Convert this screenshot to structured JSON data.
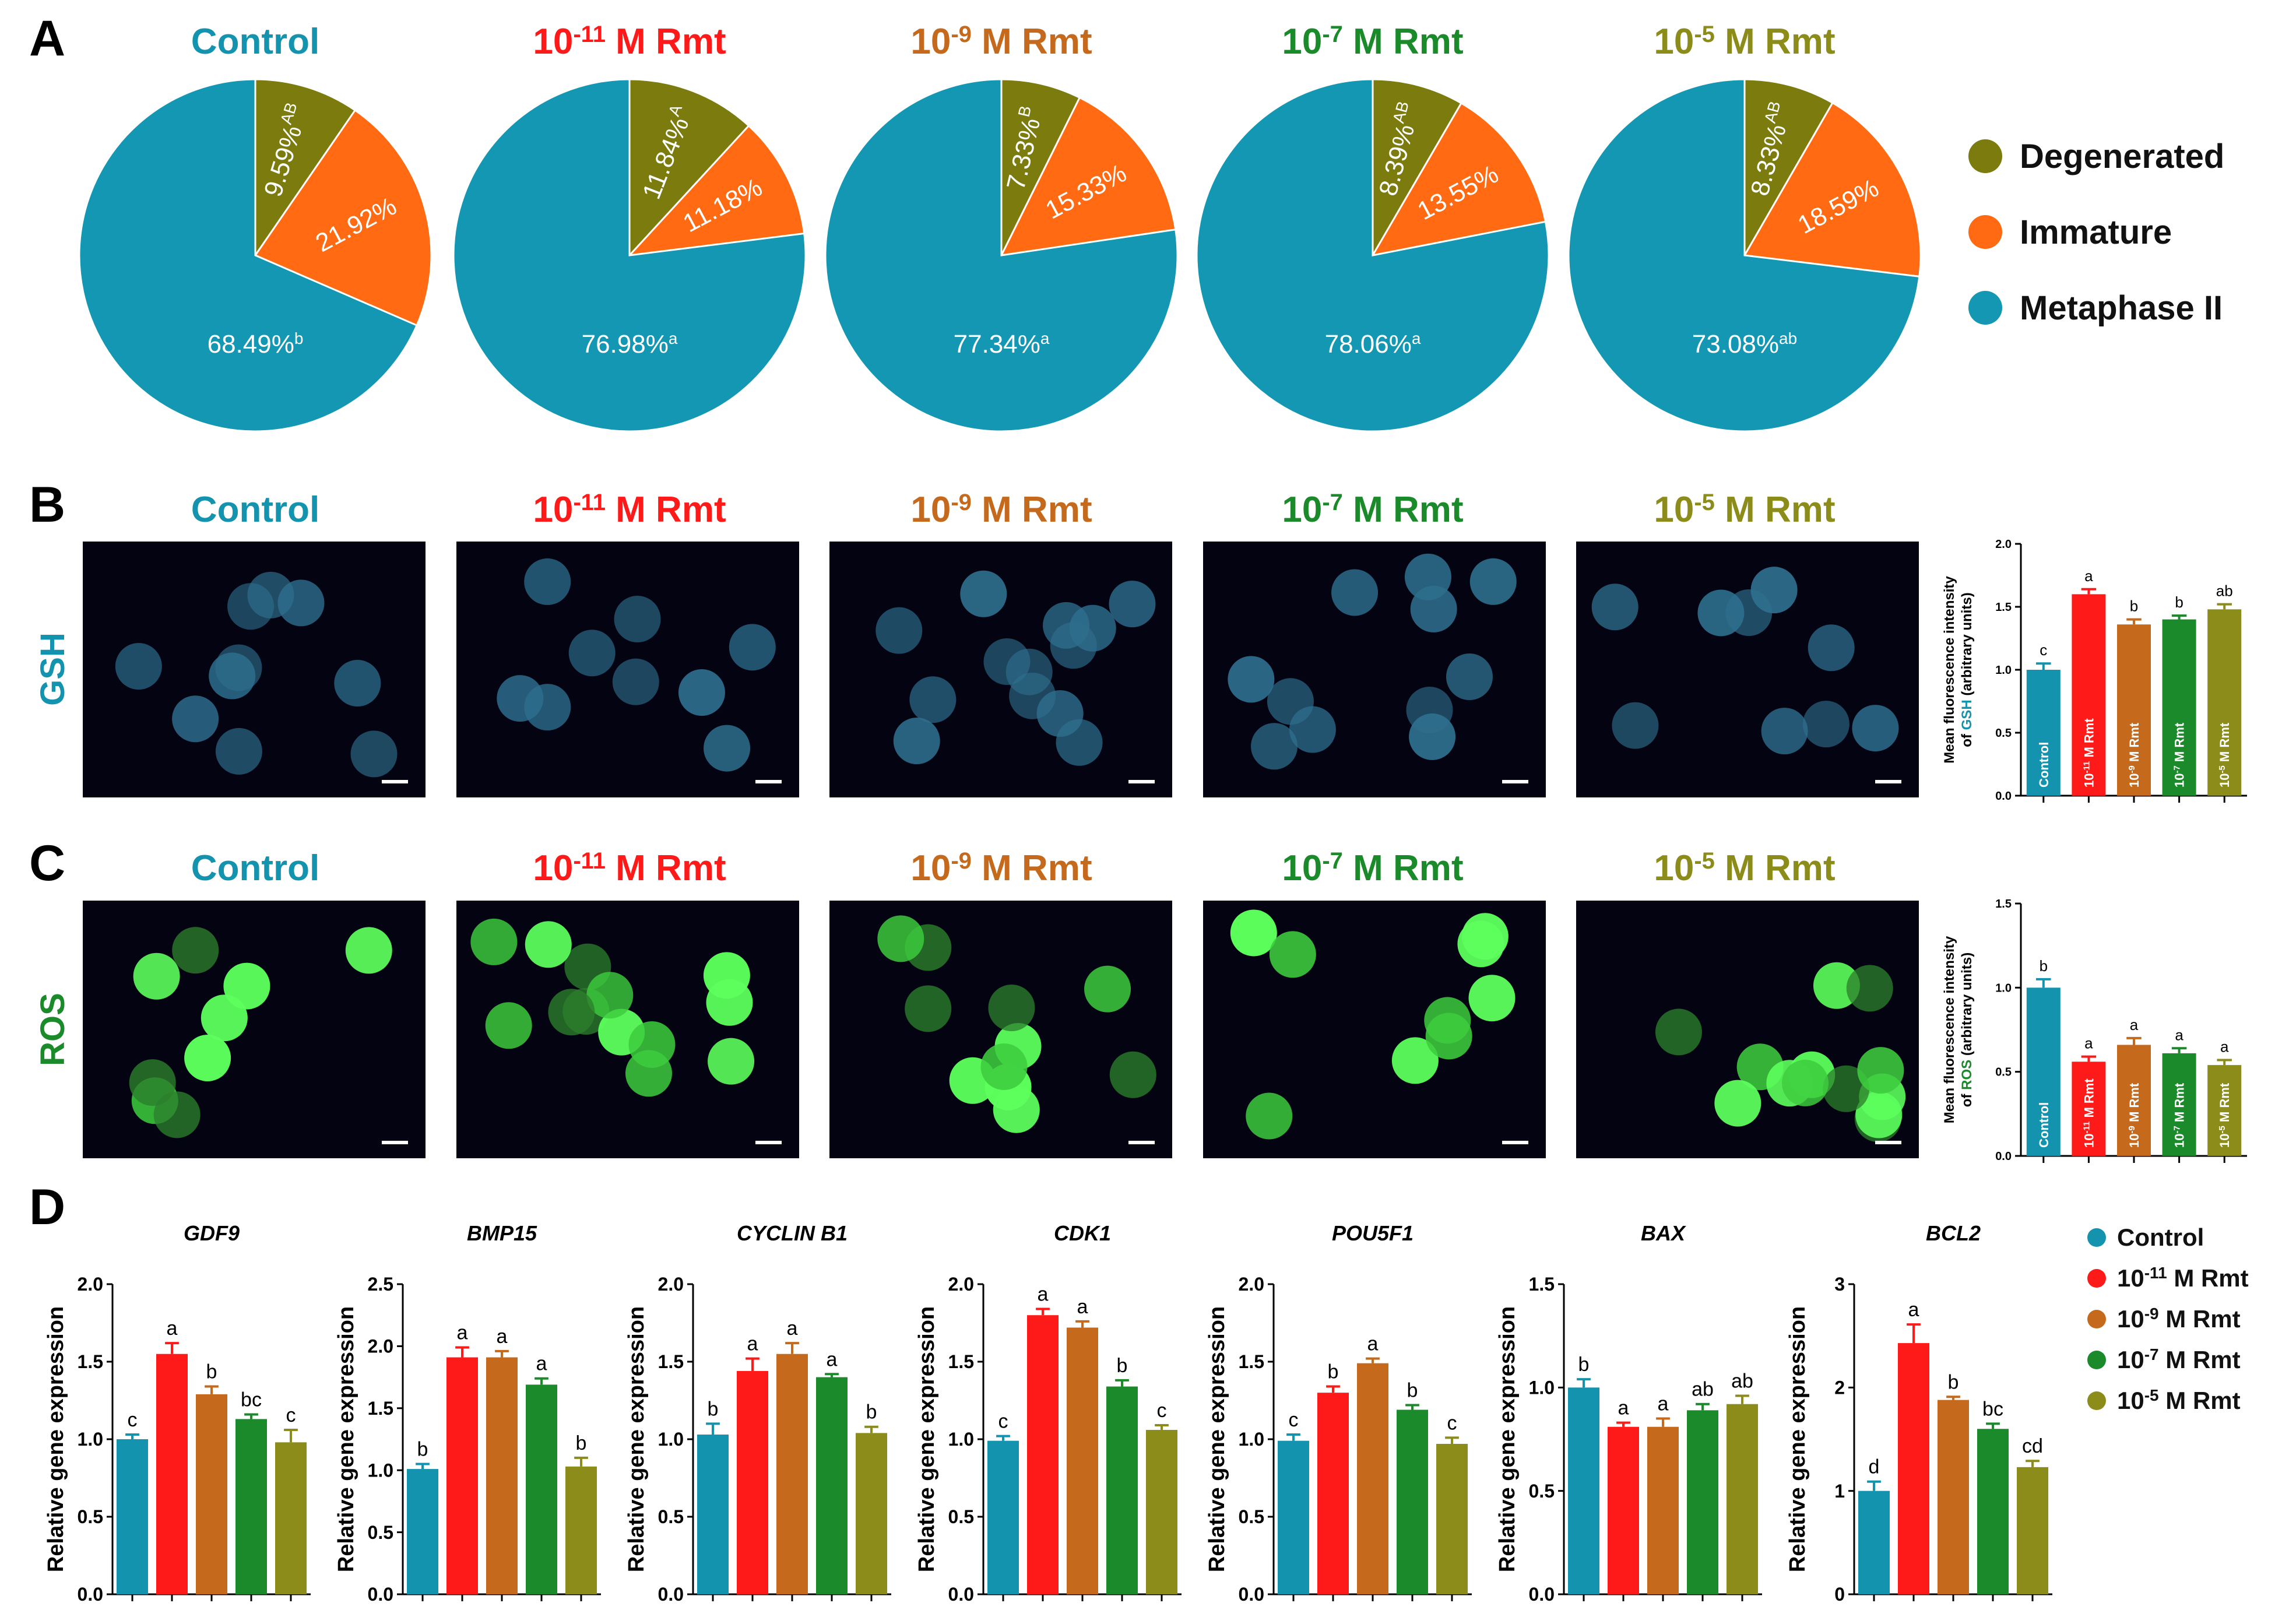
{
  "colors": {
    "control": "#1493AE",
    "rmt11": "#FF1A1A",
    "rmt9": "#C56A1C",
    "rmt7": "#1B8A2A",
    "rmt5": "#8C8C1A",
    "degenerated": "#7B7B0E",
    "immature": "#FF6A13",
    "metaphase": "#1497B3",
    "gsh_fluor": "#2E6F8E",
    "ros_fluor": "#4CE04C"
  },
  "panel_labels": [
    "A",
    "B",
    "C",
    "D"
  ],
  "group_titles": [
    {
      "base": "Control",
      "exp": "",
      "rest": ""
    },
    {
      "base": "10",
      "exp": "-11",
      "rest": " M Rmt"
    },
    {
      "base": "10",
      "exp": "-9",
      "rest": " M Rmt"
    },
    {
      "base": "10",
      "exp": "-7",
      "rest": " M Rmt"
    },
    {
      "base": "10",
      "exp": "-5",
      "rest": " M Rmt"
    }
  ],
  "pie_legend": [
    "Degenerated",
    "Immature",
    "Metaphase II"
  ],
  "row_labels": {
    "gsh": "GSH",
    "ros": "ROS"
  },
  "bar_group_labels": [
    {
      "base": "Control",
      "exp": "",
      "rest": ""
    },
    {
      "base": "10",
      "exp": "-11",
      "rest": " M Rmt"
    },
    {
      "base": "10",
      "exp": "-9",
      "rest": " M Rmt"
    },
    {
      "base": "10",
      "exp": "-7",
      "rest": " M Rmt"
    },
    {
      "base": "10",
      "exp": "-5",
      "rest": " M Rmt"
    }
  ],
  "chart_data": [
    {
      "type": "pie",
      "panel": "A",
      "categories": [
        "Degenerated",
        "Immature",
        "Metaphase II"
      ],
      "pies": [
        {
          "group": "Control",
          "values": [
            9.59,
            21.92,
            68.49
          ],
          "labels": [
            "9.59%",
            "21.92%",
            "68.49%"
          ],
          "sups": [
            "AB",
            "",
            "b"
          ]
        },
        {
          "group": "10-11 M Rmt",
          "values": [
            11.84,
            11.18,
            76.98
          ],
          "labels": [
            "11.84%",
            "11.18%",
            "76.98%"
          ],
          "sups": [
            "A",
            "",
            "a"
          ]
        },
        {
          "group": "10-9 M Rmt",
          "values": [
            7.33,
            15.33,
            77.34
          ],
          "labels": [
            "7.33%",
            "15.33%",
            "77.34%"
          ],
          "sups": [
            "B",
            "",
            "a"
          ]
        },
        {
          "group": "10-7 M Rmt",
          "values": [
            8.39,
            13.55,
            78.06
          ],
          "labels": [
            "8.39%",
            "13.55%",
            "78.06%"
          ],
          "sups": [
            "AB",
            "",
            "a"
          ]
        },
        {
          "group": "10-5 M Rmt",
          "values": [
            8.33,
            18.59,
            73.08
          ],
          "labels": [
            "8.33%",
            "18.59%",
            "73.08%"
          ],
          "sups": [
            "AB",
            "",
            "ab"
          ]
        }
      ]
    },
    {
      "type": "bar",
      "panel": "B",
      "ylabel_line1": "Mean fluorescence intensity",
      "ylabel_line2_pre": "of ",
      "ylabel_line2_key": "GSH",
      "ylabel_line2_post": " (arbitrary units)",
      "ylim": [
        0,
        2.0
      ],
      "yticks": [
        "0.0",
        "0.5",
        "1.0",
        "1.5",
        "2.0"
      ],
      "categories": [
        "Control",
        "10-11 M Rmt",
        "10-9 M Rmt",
        "10-7 M Rmt",
        "10-5 M Rmt"
      ],
      "values": [
        1.0,
        1.6,
        1.36,
        1.4,
        1.48
      ],
      "errors": [
        0.05,
        0.04,
        0.04,
        0.03,
        0.04
      ],
      "letters": [
        "c",
        "a",
        "b",
        "b",
        "ab"
      ]
    },
    {
      "type": "bar",
      "panel": "C",
      "ylabel_line1": "Mean fluorescence intensity",
      "ylabel_line2_pre": "of ",
      "ylabel_line2_key": "ROS",
      "ylabel_line2_post": " (arbitrary units)",
      "ylim": [
        0,
        1.5
      ],
      "yticks": [
        "0.0",
        "0.5",
        "1.0",
        "1.5"
      ],
      "categories": [
        "Control",
        "10-11 M Rmt",
        "10-9 M Rmt",
        "10-7 M Rmt",
        "10-5 M Rmt"
      ],
      "values": [
        1.0,
        0.56,
        0.66,
        0.61,
        0.54
      ],
      "errors": [
        0.05,
        0.03,
        0.04,
        0.03,
        0.03
      ],
      "letters": [
        "b",
        "a",
        "a",
        "a",
        "a"
      ]
    },
    {
      "type": "bar",
      "panel": "D",
      "ylabel": "Relative gene expression",
      "legend": [
        "Control",
        "10-11 M Rmt",
        "10-9 M Rmt",
        "10-7 M Rmt",
        "10-5 M Rmt"
      ],
      "genes": [
        {
          "title": "GDF9",
          "ylim": [
            0,
            2.0
          ],
          "yticks": [
            "0.0",
            "0.5",
            "1.0",
            "1.5",
            "2.0"
          ],
          "values": [
            1.0,
            1.55,
            1.29,
            1.13,
            0.98
          ],
          "errors": [
            0.03,
            0.07,
            0.05,
            0.03,
            0.08
          ],
          "letters": [
            "c",
            "a",
            "b",
            "bc",
            "c"
          ]
        },
        {
          "title": "BMP15",
          "ylim": [
            0,
            2.5
          ],
          "yticks": [
            "0.0",
            "0.5",
            "1.0",
            "1.5",
            "2.0",
            "2.5"
          ],
          "values": [
            1.01,
            1.91,
            1.91,
            1.69,
            1.03
          ],
          "errors": [
            0.04,
            0.08,
            0.05,
            0.05,
            0.07
          ],
          "letters": [
            "b",
            "a",
            "a",
            "a",
            "b"
          ]
        },
        {
          "title": "CYCLIN B1",
          "ylim": [
            0,
            2.0
          ],
          "yticks": [
            "0.0",
            "0.5",
            "1.0",
            "1.5",
            "2.0"
          ],
          "values": [
            1.03,
            1.44,
            1.55,
            1.4,
            1.04
          ],
          "errors": [
            0.07,
            0.08,
            0.07,
            0.02,
            0.04
          ],
          "letters": [
            "b",
            "a",
            "a",
            "a",
            "b"
          ]
        },
        {
          "title": "CDK1",
          "ylim": [
            0,
            2.0
          ],
          "yticks": [
            "0.0",
            "0.5",
            "1.0",
            "1.5",
            "2.0"
          ],
          "values": [
            0.99,
            1.8,
            1.72,
            1.34,
            1.06
          ],
          "errors": [
            0.03,
            0.04,
            0.04,
            0.04,
            0.03
          ],
          "letters": [
            "c",
            "a",
            "a",
            "b",
            "c"
          ]
        },
        {
          "title": "POU5F1",
          "ylim": [
            0,
            2.0
          ],
          "yticks": [
            "0.0",
            "0.5",
            "1.0",
            "1.5",
            "2.0"
          ],
          "values": [
            0.99,
            1.3,
            1.49,
            1.19,
            0.97
          ],
          "errors": [
            0.04,
            0.04,
            0.03,
            0.03,
            0.04
          ],
          "letters": [
            "c",
            "b",
            "a",
            "b",
            "c"
          ]
        },
        {
          "title": "BAX",
          "ylim": [
            0,
            1.5
          ],
          "yticks": [
            "0.0",
            "0.5",
            "1.0",
            "1.5"
          ],
          "values": [
            1.0,
            0.81,
            0.81,
            0.89,
            0.92
          ],
          "errors": [
            0.04,
            0.02,
            0.04,
            0.03,
            0.04
          ],
          "letters": [
            "b",
            "a",
            "a",
            "ab",
            "ab"
          ]
        },
        {
          "title": "BCL2",
          "ylim": [
            0,
            3
          ],
          "yticks": [
            "0",
            "1",
            "2",
            "3"
          ],
          "values": [
            1.0,
            2.43,
            1.88,
            1.6,
            1.23
          ],
          "errors": [
            0.09,
            0.18,
            0.03,
            0.05,
            0.06
          ],
          "letters": [
            "d",
            "a",
            "b",
            "bc",
            "cd"
          ]
        }
      ]
    }
  ]
}
